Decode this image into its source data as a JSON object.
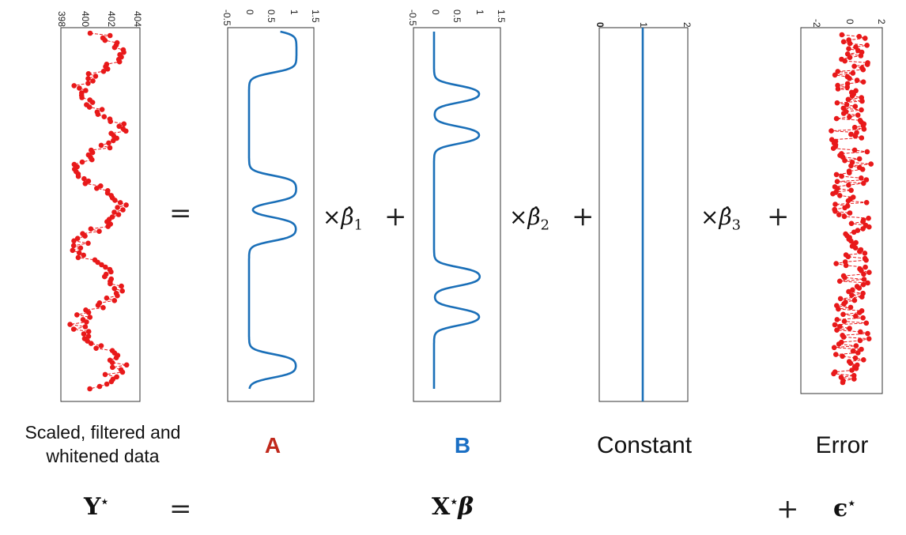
{
  "panels": [
    {
      "id": "data",
      "ticks": [
        "398",
        "400",
        "402",
        "404"
      ]
    },
    {
      "id": "A",
      "ticks": [
        "-0.5",
        "0",
        "0.5",
        "1",
        "1.5"
      ]
    },
    {
      "id": "B",
      "ticks": [
        "-0.5",
        "0",
        "0.5",
        "1",
        "1.5"
      ]
    },
    {
      "id": "constant",
      "ticks": [
        "0",
        "1",
        "2"
      ]
    },
    {
      "id": "error",
      "ticks": [
        "-2",
        "0",
        "2"
      ]
    }
  ],
  "operators": {
    "equals": "=",
    "times_beta1": "×β̂₁",
    "plus1": "+",
    "times_beta2": "×β̂₂",
    "plus2": "+",
    "times_beta3": "×β̂₃",
    "plus3": "+"
  },
  "captions": {
    "data_line1": "Scaled, filtered and",
    "data_line2": "whitened data",
    "A": "A",
    "B": "B",
    "constant": "Constant",
    "error": "Error"
  },
  "equation": {
    "lhs": "Y⋆",
    "equals": "=",
    "model": "X⋆β",
    "plus": "+",
    "error": "ϵ⋆"
  },
  "colors": {
    "red": "#e8191a",
    "blue": "#1a6fb8",
    "A_label": "#c0281b",
    "B_label": "#1a6fc4"
  }
}
